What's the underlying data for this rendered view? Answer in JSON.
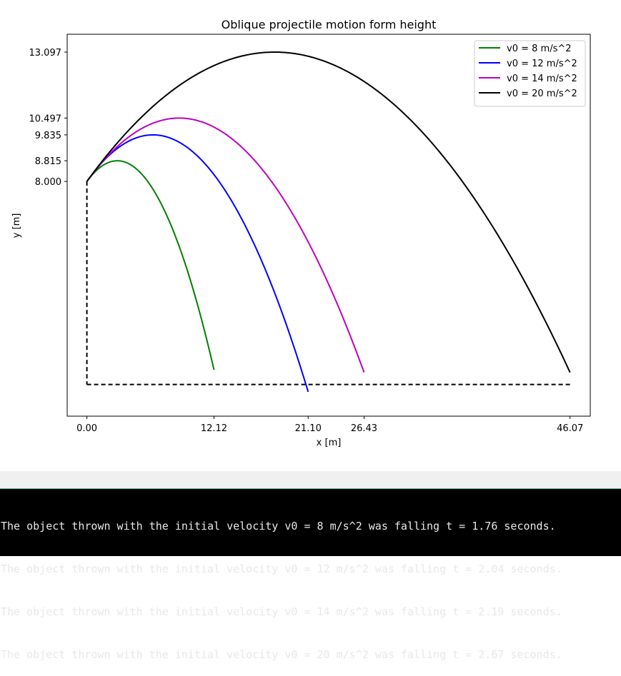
{
  "chart_data": {
    "type": "line",
    "title": "Oblique projectile motion form height",
    "xlabel": "x [m]",
    "ylabel": "y [m]",
    "xlim": [
      -1.88,
      48.0
    ],
    "ylim": [
      -1.25,
      13.8
    ],
    "xticks": [
      0.0,
      12.12,
      21.1,
      26.43,
      46.07
    ],
    "xtick_labels": [
      "0.00",
      "12.12",
      "21.10",
      "26.43",
      "46.07"
    ],
    "yticks": [
      8.0,
      8.815,
      9.835,
      10.497,
      13.097
    ],
    "ytick_labels": [
      "8.000",
      "8.815",
      "9.835",
      "10.497",
      "13.097"
    ],
    "grid": false,
    "legend_position": "top-right",
    "series": [
      {
        "name": "v0 = 8 m/s^2",
        "color": "#008000",
        "x0": 0.0,
        "y0": 8.0,
        "apex_x": 2.9,
        "apex_y": 8.815,
        "x_end": 12.12,
        "y_end": 0.0
      },
      {
        "name": "v0 = 12 m/s^2",
        "color": "#0000ff",
        "x0": 0.0,
        "y0": 8.0,
        "apex_x": 6.3,
        "apex_y": 9.835,
        "x_end": 21.1,
        "y_end": 0.0
      },
      {
        "name": "v0 = 14 m/s^2",
        "color": "#bf00bf",
        "x0": 0.0,
        "y0": 8.0,
        "apex_x": 8.8,
        "apex_y": 10.497,
        "x_end": 26.43,
        "y_end": 0.0
      },
      {
        "name": "v0 = 20 m/s^2",
        "color": "#000000",
        "x0": 0.0,
        "y0": 8.0,
        "apex_x": 17.9,
        "apex_y": 13.097,
        "x_end": 46.07,
        "y_end": -0.08
      }
    ],
    "reference_lines": [
      {
        "kind": "dashed",
        "color": "#000000",
        "x": [
          0.0,
          0.0
        ],
        "y": [
          8.0,
          0.0
        ]
      },
      {
        "kind": "dashed",
        "color": "#000000",
        "x": [
          0.0,
          46.07
        ],
        "y": [
          0.0,
          0.0
        ]
      }
    ]
  },
  "console": {
    "lines": [
      "The object thrown with the initial velocity v0 = 8 m/s^2 was falling t = 1.76 seconds.",
      "The object thrown with the initial velocity v0 = 12 m/s^2 was falling t = 2.04 seconds.",
      "The object thrown with the initial velocity v0 = 14 m/s^2 was falling t = 2.19 seconds.",
      "The object thrown with the initial velocity v0 = 20 m/s^2 was falling t = 2.67 seconds."
    ]
  }
}
